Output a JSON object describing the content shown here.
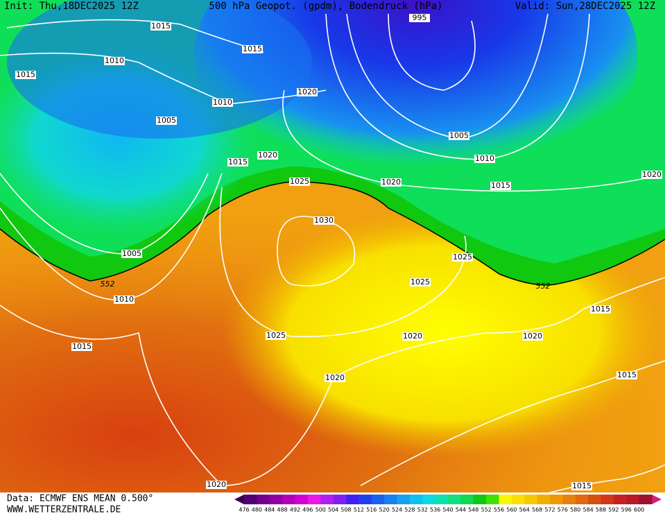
{
  "header": {
    "init": "Init: Thu,18DEC2025 12Z",
    "title": "500 hPa Geopot. (gpdm), Bodendruck (hPa)",
    "valid": "Valid: Sun,28DEC2025 12Z"
  },
  "isobar_labels": [
    "1015",
    "1015",
    "995",
    "1010",
    "1015",
    "1020",
    "1010",
    "1005",
    "1005",
    "1020",
    "1010",
    "1015",
    "1020",
    "1025",
    "1020",
    "1015",
    "1030",
    "1005",
    "1025",
    "1025",
    "1010",
    "1015",
    "1025",
    "1020",
    "1020",
    "1015",
    "1020",
    "1015",
    "1020",
    "1015"
  ],
  "contour_labels": [
    "552",
    "552"
  ],
  "colorbar": {
    "ticks": [
      476,
      480,
      484,
      488,
      492,
      496,
      500,
      504,
      508,
      512,
      516,
      520,
      524,
      528,
      532,
      536,
      540,
      544,
      548,
      552,
      556,
      560,
      564,
      568,
      572,
      576,
      580,
      584,
      588,
      592,
      596,
      600
    ]
  },
  "footer": {
    "source": "Data: ECMWF ENS MEAN 0.500°",
    "site": "WWW.WETTERZENTRALE.DE"
  }
}
